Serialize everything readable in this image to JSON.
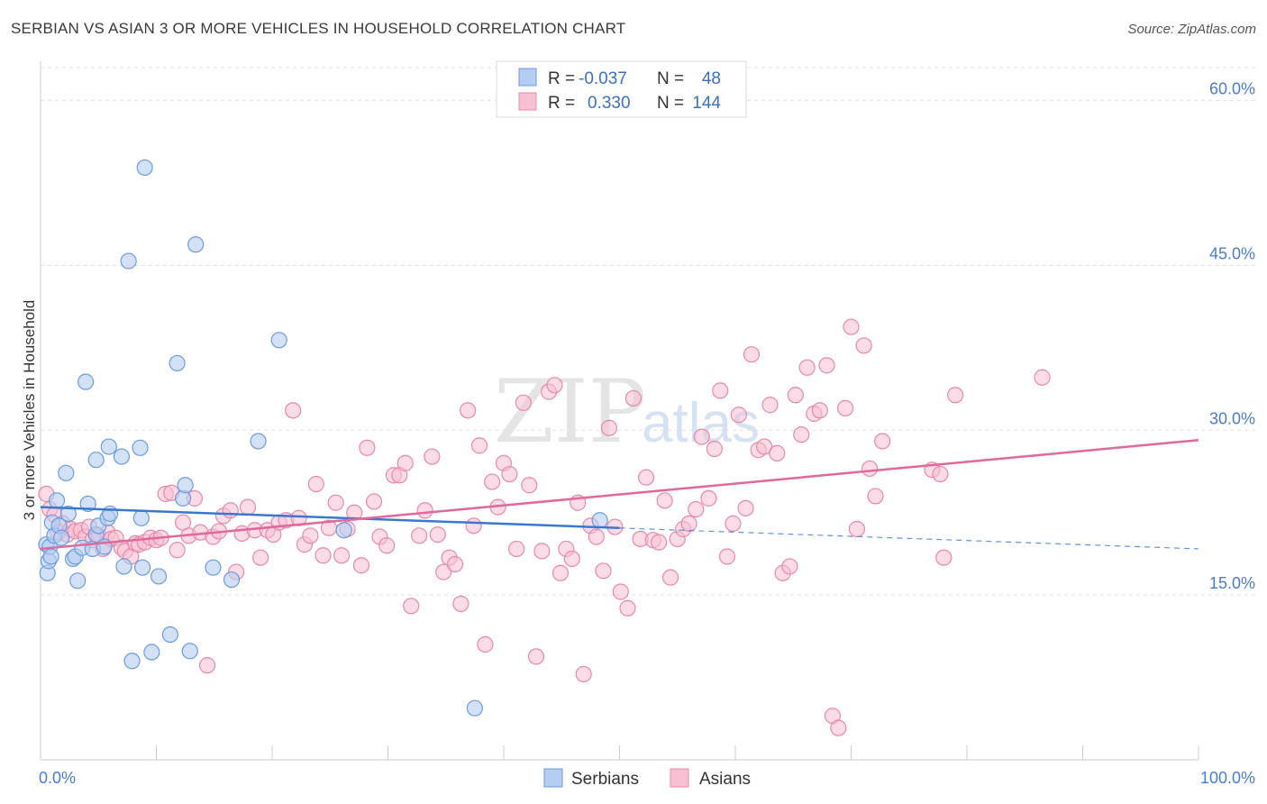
{
  "title": "SERBIAN VS ASIAN 3 OR MORE VEHICLES IN HOUSEHOLD CORRELATION CHART",
  "source": "Source: ZipAtlas.com",
  "watermark": {
    "zip": "ZIP",
    "atlas": "atlas"
  },
  "legend": {
    "r_label": "R =",
    "n_label": "N =",
    "rows": [
      {
        "r": "-0.037",
        "n": "48"
      },
      {
        "r": "0.330",
        "n": "144"
      }
    ]
  },
  "bottom_legend": [
    "Serbians",
    "Asians"
  ],
  "chart_data": {
    "type": "scatter",
    "title": "SERBIAN VS ASIAN 3 OR MORE VEHICLES IN HOUSEHOLD CORRELATION CHART",
    "xlabel": "",
    "ylabel": "3 or more Vehicles in Household",
    "xlim": [
      0,
      100
    ],
    "ylim": [
      0,
      63
    ],
    "x_tick_labels": [
      "0.0%",
      "100.0%"
    ],
    "y_ticks": [
      15,
      30,
      45,
      60
    ],
    "y_tick_labels": [
      "15.0%",
      "30.0%",
      "45.0%",
      "60.0%"
    ],
    "grid": true,
    "legend_position": "top-center",
    "colors": {
      "serbians_fill": "#b5cdf0",
      "serbians_stroke": "#6a9be0",
      "serbians_line": "#3a78d0",
      "asians_fill": "#f7c0d2",
      "asians_stroke": "#e888a8",
      "asians_line": "#e0689a",
      "tick_label": "#4a7bd0"
    },
    "series": [
      {
        "name": "Serbians",
        "trend": {
          "x0": 0,
          "y0": 23.0,
          "x1": 50,
          "y1": 21.1,
          "dashed_to_x": 100,
          "dashed_y": 19.2
        },
        "points": [
          [
            0.5,
            19.6
          ],
          [
            0.6,
            17.0
          ],
          [
            0.7,
            18.1
          ],
          [
            0.8,
            19.4
          ],
          [
            0.9,
            18.5
          ],
          [
            1.0,
            21.6
          ],
          [
            1.2,
            20.4
          ],
          [
            1.4,
            23.6
          ],
          [
            1.6,
            21.3
          ],
          [
            1.8,
            20.2
          ],
          [
            2.2,
            26.1
          ],
          [
            2.4,
            22.4
          ],
          [
            2.8,
            18.3
          ],
          [
            3.0,
            18.5
          ],
          [
            3.2,
            16.3
          ],
          [
            3.6,
            19.3
          ],
          [
            3.9,
            34.4
          ],
          [
            4.1,
            23.3
          ],
          [
            4.5,
            19.2
          ],
          [
            4.8,
            20.5
          ],
          [
            4.8,
            27.3
          ],
          [
            5.0,
            21.3
          ],
          [
            5.5,
            19.4
          ],
          [
            5.8,
            22.0
          ],
          [
            5.9,
            28.5
          ],
          [
            6.0,
            22.4
          ],
          [
            7.0,
            27.6
          ],
          [
            7.2,
            17.6
          ],
          [
            7.6,
            45.4
          ],
          [
            7.9,
            9.0
          ],
          [
            8.6,
            28.4
          ],
          [
            8.7,
            22.0
          ],
          [
            8.8,
            17.5
          ],
          [
            9.0,
            53.9
          ],
          [
            9.6,
            9.8
          ],
          [
            10.2,
            16.7
          ],
          [
            11.2,
            11.4
          ],
          [
            11.8,
            36.1
          ],
          [
            12.3,
            23.8
          ],
          [
            12.5,
            25.0
          ],
          [
            12.9,
            9.9
          ],
          [
            13.4,
            46.9
          ],
          [
            14.9,
            17.5
          ],
          [
            16.5,
            16.4
          ],
          [
            18.8,
            29.0
          ],
          [
            20.6,
            38.2
          ],
          [
            26.2,
            20.9
          ],
          [
            37.5,
            4.7
          ],
          [
            48.3,
            21.8
          ]
        ]
      },
      {
        "name": "Asians",
        "trend": {
          "x0": 0,
          "y0": 19.2,
          "x1": 100,
          "y1": 29.1
        },
        "points": [
          [
            0.5,
            24.2
          ],
          [
            0.8,
            22.8
          ],
          [
            1.2,
            22.3
          ],
          [
            1.5,
            20.7
          ],
          [
            1.9,
            21.5
          ],
          [
            2.3,
            20.5
          ],
          [
            2.6,
            21.0
          ],
          [
            3.0,
            20.8
          ],
          [
            3.5,
            20.9
          ],
          [
            3.9,
            20.3
          ],
          [
            4.2,
            21.2
          ],
          [
            4.5,
            20.0
          ],
          [
            5.0,
            20.4
          ],
          [
            5.4,
            19.2
          ],
          [
            5.8,
            20.7
          ],
          [
            6.1,
            20.1
          ],
          [
            6.5,
            20.2
          ],
          [
            7.0,
            19.3
          ],
          [
            7.3,
            19.0
          ],
          [
            7.8,
            18.5
          ],
          [
            8.2,
            19.7
          ],
          [
            8.5,
            19.6
          ],
          [
            9.0,
            19.8
          ],
          [
            9.5,
            20.2
          ],
          [
            10.0,
            20.0
          ],
          [
            10.4,
            20.2
          ],
          [
            10.8,
            24.2
          ],
          [
            11.3,
            24.3
          ],
          [
            11.8,
            19.1
          ],
          [
            12.3,
            21.6
          ],
          [
            12.8,
            20.4
          ],
          [
            13.3,
            23.8
          ],
          [
            13.8,
            20.7
          ],
          [
            14.4,
            8.6
          ],
          [
            14.9,
            20.3
          ],
          [
            15.4,
            20.8
          ],
          [
            15.8,
            22.2
          ],
          [
            16.4,
            22.7
          ],
          [
            16.9,
            17.1
          ],
          [
            17.4,
            20.6
          ],
          [
            17.9,
            23.0
          ],
          [
            18.5,
            20.9
          ],
          [
            19.0,
            18.4
          ],
          [
            19.6,
            20.9
          ],
          [
            20.1,
            20.5
          ],
          [
            20.6,
            21.6
          ],
          [
            21.2,
            21.8
          ],
          [
            21.8,
            31.8
          ],
          [
            22.3,
            22.0
          ],
          [
            22.8,
            19.6
          ],
          [
            23.3,
            20.4
          ],
          [
            23.8,
            25.1
          ],
          [
            24.4,
            18.6
          ],
          [
            24.9,
            21.1
          ],
          [
            25.5,
            23.4
          ],
          [
            26.0,
            18.6
          ],
          [
            26.5,
            21.0
          ],
          [
            27.1,
            22.5
          ],
          [
            27.7,
            17.7
          ],
          [
            28.2,
            28.4
          ],
          [
            28.8,
            23.5
          ],
          [
            29.3,
            20.3
          ],
          [
            29.9,
            19.5
          ],
          [
            30.5,
            25.9
          ],
          [
            31.0,
            25.9
          ],
          [
            31.5,
            27.0
          ],
          [
            32.0,
            14.0
          ],
          [
            32.7,
            20.4
          ],
          [
            33.2,
            22.7
          ],
          [
            33.8,
            27.6
          ],
          [
            34.3,
            20.5
          ],
          [
            34.8,
            17.1
          ],
          [
            35.3,
            18.4
          ],
          [
            35.8,
            17.8
          ],
          [
            36.3,
            14.2
          ],
          [
            36.9,
            31.8
          ],
          [
            37.4,
            21.3
          ],
          [
            37.9,
            28.6
          ],
          [
            38.4,
            10.5
          ],
          [
            39.0,
            25.3
          ],
          [
            39.5,
            23.0
          ],
          [
            40.0,
            27.0
          ],
          [
            40.5,
            26.0
          ],
          [
            41.1,
            19.2
          ],
          [
            41.7,
            32.5
          ],
          [
            42.2,
            25.0
          ],
          [
            42.8,
            9.4
          ],
          [
            43.3,
            19.0
          ],
          [
            43.9,
            33.5
          ],
          [
            44.4,
            34.1
          ],
          [
            44.9,
            17.0
          ],
          [
            45.4,
            19.2
          ],
          [
            45.9,
            18.3
          ],
          [
            46.4,
            23.4
          ],
          [
            46.9,
            7.8
          ],
          [
            47.5,
            21.3
          ],
          [
            48.0,
            20.3
          ],
          [
            48.6,
            17.2
          ],
          [
            49.1,
            30.2
          ],
          [
            49.6,
            21.2
          ],
          [
            50.1,
            15.3
          ],
          [
            50.7,
            13.8
          ],
          [
            51.2,
            32.9
          ],
          [
            51.8,
            20.1
          ],
          [
            52.3,
            25.7
          ],
          [
            52.9,
            20.0
          ],
          [
            53.4,
            19.8
          ],
          [
            53.9,
            23.6
          ],
          [
            54.4,
            16.6
          ],
          [
            55.0,
            20.1
          ],
          [
            55.5,
            21.0
          ],
          [
            56.0,
            21.5
          ],
          [
            56.6,
            22.8
          ],
          [
            57.1,
            29.4
          ],
          [
            57.7,
            23.8
          ],
          [
            58.2,
            28.3
          ],
          [
            58.7,
            33.6
          ],
          [
            59.3,
            18.5
          ],
          [
            59.8,
            21.5
          ],
          [
            60.3,
            31.4
          ],
          [
            60.9,
            22.9
          ],
          [
            61.4,
            36.9
          ],
          [
            62.0,
            28.2
          ],
          [
            62.5,
            28.5
          ],
          [
            63.0,
            32.3
          ],
          [
            63.6,
            27.9
          ],
          [
            64.1,
            17.0
          ],
          [
            64.7,
            17.6
          ],
          [
            65.2,
            33.2
          ],
          [
            65.7,
            29.6
          ],
          [
            66.2,
            35.7
          ],
          [
            66.8,
            31.5
          ],
          [
            67.3,
            31.8
          ],
          [
            67.9,
            35.9
          ],
          [
            68.4,
            4.0
          ],
          [
            68.9,
            2.9
          ],
          [
            69.5,
            32.0
          ],
          [
            70.0,
            39.4
          ],
          [
            70.5,
            21.0
          ],
          [
            71.1,
            37.7
          ],
          [
            71.6,
            26.5
          ],
          [
            72.1,
            24.0
          ],
          [
            72.7,
            29.0
          ],
          [
            77.0,
            26.4
          ],
          [
            78.0,
            18.4
          ],
          [
            77.7,
            26.0
          ],
          [
            79.0,
            33.2
          ],
          [
            86.5,
            34.8
          ]
        ]
      }
    ]
  }
}
